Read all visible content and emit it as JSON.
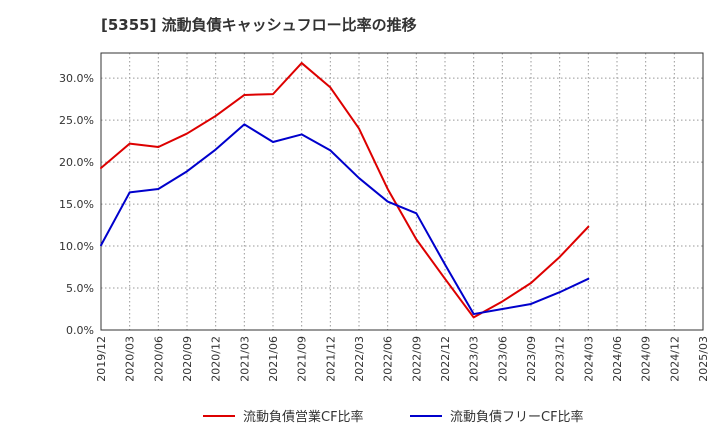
{
  "chart_data": {
    "type": "line",
    "title": "[5355]  流動負債キャッシュフロー比率の推移",
    "xlabel": "",
    "ylabel": "",
    "x": [
      "2019/12",
      "2020/03",
      "2020/06",
      "2020/09",
      "2020/12",
      "2021/03",
      "2021/06",
      "2021/09",
      "2021/12",
      "2022/03",
      "2022/06",
      "2022/09",
      "2022/12",
      "2023/03",
      "2023/06",
      "2023/09",
      "2023/12",
      "2024/03",
      "2024/06",
      "2024/09",
      "2024/12",
      "2025/03"
    ],
    "ylim": [
      0,
      33
    ],
    "yticks": [
      "0.0%",
      "5.0%",
      "10.0%",
      "15.0%",
      "20.0%",
      "25.0%",
      "30.0%"
    ],
    "ytick_values": [
      0,
      5,
      10,
      15,
      20,
      25,
      30
    ],
    "grid": true,
    "legend_position": "bottom",
    "series": [
      {
        "name": "流動負債営業CF比率",
        "color": "#dd0000",
        "values": [
          19.3,
          22.2,
          21.8,
          23.4,
          25.5,
          28.0,
          28.1,
          31.8,
          28.9,
          24.0,
          16.8,
          10.8,
          6.1,
          1.5,
          3.4,
          5.6,
          8.7,
          12.3,
          null,
          null,
          null,
          null
        ]
      },
      {
        "name": "流動負債フリーCF比率",
        "color": "#0000cc",
        "values": [
          10.1,
          16.4,
          16.8,
          18.9,
          21.5,
          24.5,
          22.4,
          23.3,
          21.4,
          18.1,
          15.3,
          13.9,
          7.8,
          1.9,
          2.5,
          3.1,
          4.5,
          6.1,
          null,
          null,
          null,
          null
        ]
      }
    ]
  }
}
